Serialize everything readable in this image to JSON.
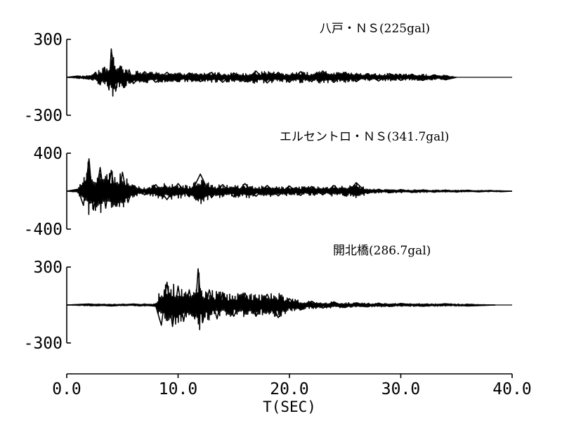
{
  "chart_data": {
    "type": "line",
    "xlabel": "T(SEC)",
    "xlim": [
      0,
      40
    ],
    "x_ticks": [
      "0.0",
      "10.0",
      "20.0",
      "30.0",
      "40.0"
    ],
    "records": [
      {
        "title": "八戸・ＮＳ(225gal)",
        "ylim": [
          -300,
          300
        ],
        "y_ticks": [
          "300",
          "-300"
        ],
        "duration": 35,
        "peak": 225,
        "points": [
          [
            0,
            0
          ],
          [
            1,
            10
          ],
          [
            2,
            -15
          ],
          [
            2.6,
            40
          ],
          [
            3,
            -60
          ],
          [
            3.4,
            80
          ],
          [
            3.8,
            -100
          ],
          [
            4,
            225
          ],
          [
            4.4,
            -110
          ],
          [
            4.8,
            90
          ],
          [
            5.2,
            -80
          ],
          [
            5.6,
            60
          ],
          [
            6,
            -50
          ],
          [
            7,
            45
          ],
          [
            8,
            -40
          ],
          [
            9,
            40
          ],
          [
            10,
            -35
          ],
          [
            11,
            35
          ],
          [
            12,
            -35
          ],
          [
            13,
            40
          ],
          [
            14,
            -40
          ],
          [
            15,
            35
          ],
          [
            16,
            -35
          ],
          [
            17,
            50
          ],
          [
            18,
            -45
          ],
          [
            19,
            40
          ],
          [
            20,
            -40
          ],
          [
            21,
            45
          ],
          [
            22,
            -35
          ],
          [
            23,
            50
          ],
          [
            24,
            -40
          ],
          [
            25,
            40
          ],
          [
            26,
            -35
          ],
          [
            27,
            30
          ],
          [
            28,
            -30
          ],
          [
            29,
            30
          ],
          [
            30,
            -25
          ],
          [
            31,
            25
          ],
          [
            32,
            -25
          ],
          [
            33,
            20
          ],
          [
            34,
            -20
          ],
          [
            35,
            0
          ]
        ]
      },
      {
        "title": "エルセントロ・ＮＳ(341.7gal)",
        "ylim": [
          -400,
          400
        ],
        "y_ticks": [
          "400",
          "-400"
        ],
        "duration": 40,
        "peak": 341.7,
        "points": [
          [
            0,
            0
          ],
          [
            1,
            20
          ],
          [
            1.5,
            -150
          ],
          [
            2,
            341.7
          ],
          [
            2.4,
            -200
          ],
          [
            3,
            250
          ],
          [
            3.5,
            -180
          ],
          [
            4,
            220
          ],
          [
            4.5,
            -160
          ],
          [
            5,
            200
          ],
          [
            5.5,
            -120
          ],
          [
            6,
            60
          ],
          [
            7,
            -40
          ],
          [
            8,
            70
          ],
          [
            9,
            -90
          ],
          [
            10,
            80
          ],
          [
            11,
            -60
          ],
          [
            12,
            180
          ],
          [
            13,
            -70
          ],
          [
            14,
            70
          ],
          [
            15,
            -60
          ],
          [
            16,
            80
          ],
          [
            17,
            -55
          ],
          [
            18,
            60
          ],
          [
            19,
            -50
          ],
          [
            20,
            55
          ],
          [
            21,
            -45
          ],
          [
            22,
            50
          ],
          [
            23,
            -40
          ],
          [
            24,
            60
          ],
          [
            25,
            -50
          ],
          [
            26,
            90
          ],
          [
            27,
            -25
          ],
          [
            28,
            20
          ],
          [
            29,
            -18
          ],
          [
            30,
            18
          ],
          [
            31,
            -15
          ],
          [
            32,
            15
          ],
          [
            33,
            -12
          ],
          [
            34,
            12
          ],
          [
            35,
            -10
          ],
          [
            36,
            10
          ],
          [
            37,
            -8
          ],
          [
            38,
            8
          ],
          [
            39,
            -6
          ],
          [
            40,
            0
          ]
        ]
      },
      {
        "title": "開北橋(286.7gal)",
        "ylim": [
          -300,
          300
        ],
        "y_ticks": [
          "300",
          "-300"
        ],
        "duration": 38.5,
        "peak": 286.7,
        "points": [
          [
            0,
            0
          ],
          [
            2,
            8
          ],
          [
            4,
            -8
          ],
          [
            6,
            8
          ],
          [
            8,
            -10
          ],
          [
            8.5,
            -160
          ],
          [
            9,
            180
          ],
          [
            9.5,
            -170
          ],
          [
            10,
            150
          ],
          [
            10.5,
            -130
          ],
          [
            11,
            120
          ],
          [
            11.5,
            -110
          ],
          [
            11.8,
            286.7
          ],
          [
            12.2,
            -140
          ],
          [
            12.8,
            120
          ],
          [
            13.5,
            -110
          ],
          [
            14,
            100
          ],
          [
            15,
            -90
          ],
          [
            16,
            95
          ],
          [
            17,
            -90
          ],
          [
            18,
            85
          ],
          [
            19,
            -100
          ],
          [
            20,
            50
          ],
          [
            21,
            -40
          ],
          [
            22,
            30
          ],
          [
            23,
            -25
          ],
          [
            24,
            25
          ],
          [
            25,
            -20
          ],
          [
            26,
            18
          ],
          [
            27,
            -15
          ],
          [
            28,
            15
          ],
          [
            29,
            -12
          ],
          [
            30,
            12
          ],
          [
            32,
            -10
          ],
          [
            34,
            10
          ],
          [
            36,
            -8
          ],
          [
            38.5,
            0
          ]
        ]
      }
    ]
  }
}
